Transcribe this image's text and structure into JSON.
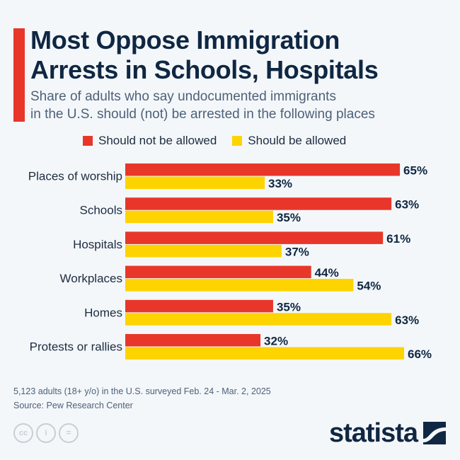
{
  "header": {
    "title_lines": [
      "Most Oppose Immigration",
      "Arrests in Schools, Hospitals"
    ],
    "subtitle_lines": [
      "Share of adults who say undocumented immigrants",
      "in the U.S. should (not) be arrested in the following places"
    ],
    "accent_color": "#e8362b"
  },
  "chart_data": {
    "type": "bar",
    "orientation": "horizontal",
    "title": "Most Oppose Immigration Arrests in Schools, Hospitals",
    "subtitle": "Share of adults who say undocumented immigrants in the U.S. should (not) be arrested in the following places",
    "categories": [
      "Places of worship",
      "Schools",
      "Hospitals",
      "Workplaces",
      "Homes",
      "Protests or rallies"
    ],
    "series": [
      {
        "name": "Should not be allowed",
        "color": "#e8362b",
        "values": [
          65,
          63,
          61,
          44,
          35,
          32
        ]
      },
      {
        "name": "Should be allowed",
        "color": "#fdd300",
        "values": [
          33,
          35,
          37,
          54,
          63,
          66
        ]
      }
    ],
    "value_suffix": "%",
    "xlabel": "",
    "ylabel": "",
    "xlim": [
      0,
      100
    ],
    "grid": false,
    "legend": "top"
  },
  "footer": {
    "note": "5,123 adults (18+ y/o) in the U.S. surveyed Feb. 24 - Mar. 2, 2025",
    "source": "Source: Pew Research Center",
    "license_icons": [
      "cc-icon",
      "attribution-icon",
      "no-derivatives-icon"
    ],
    "cc_labels": [
      "cc",
      "i",
      "="
    ],
    "brand": "statista"
  }
}
